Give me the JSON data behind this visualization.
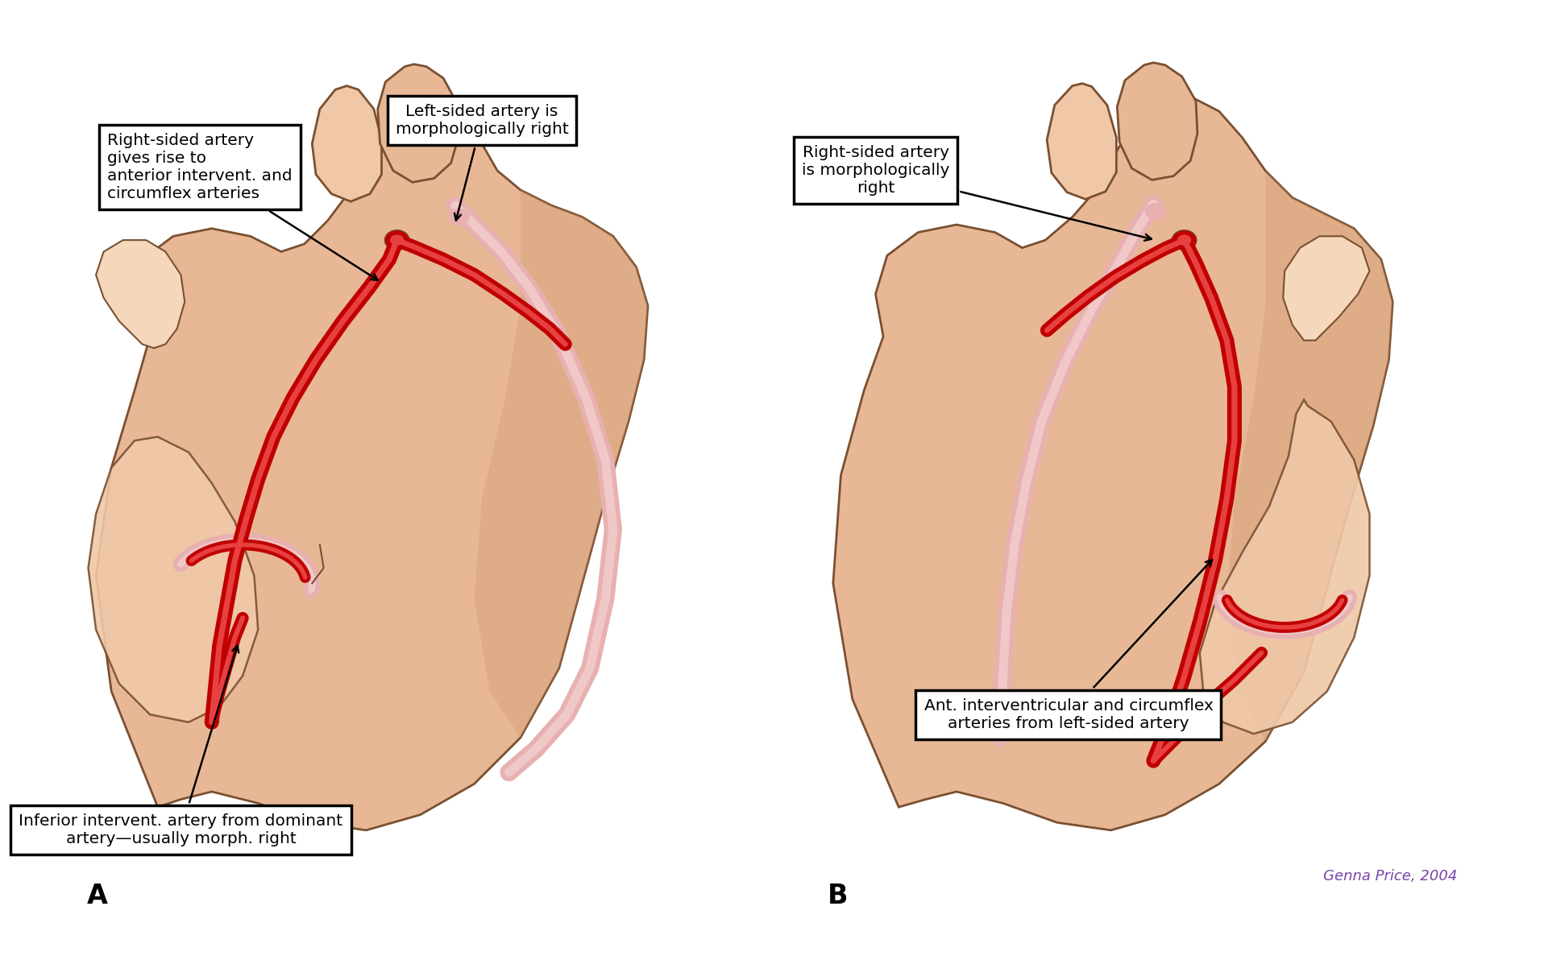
{
  "bg_color": "#ffffff",
  "skin_base": "#E8B896",
  "skin_light": "#F0C8A8",
  "skin_lighter": "#F5D8BC",
  "skin_shadow": "#D09870",
  "skin_dark": "#C08860",
  "skin_outline": "#7A5030",
  "artery_red": "#C00000",
  "artery_highlight": "#E84040",
  "artery_pink": "#E8B0B0",
  "artery_pink_light": "#F0C8C8",
  "label_A": "A",
  "label_B": "B",
  "ann1": "Right-sided artery\ngives rise to\nanterior intervent. and\ncircumflex arteries",
  "ann2": "Left-sided artery is\nmorphologically right",
  "ann3": "Right-sided artery\nis morphologically\nright",
  "ann4": "Inferior intervent. artery from dominant\nartery—usually morph. right",
  "ann5": "Ant. interventricular and circumflex\narteries from left-sided artery",
  "signature": "Genna Price, 2004"
}
